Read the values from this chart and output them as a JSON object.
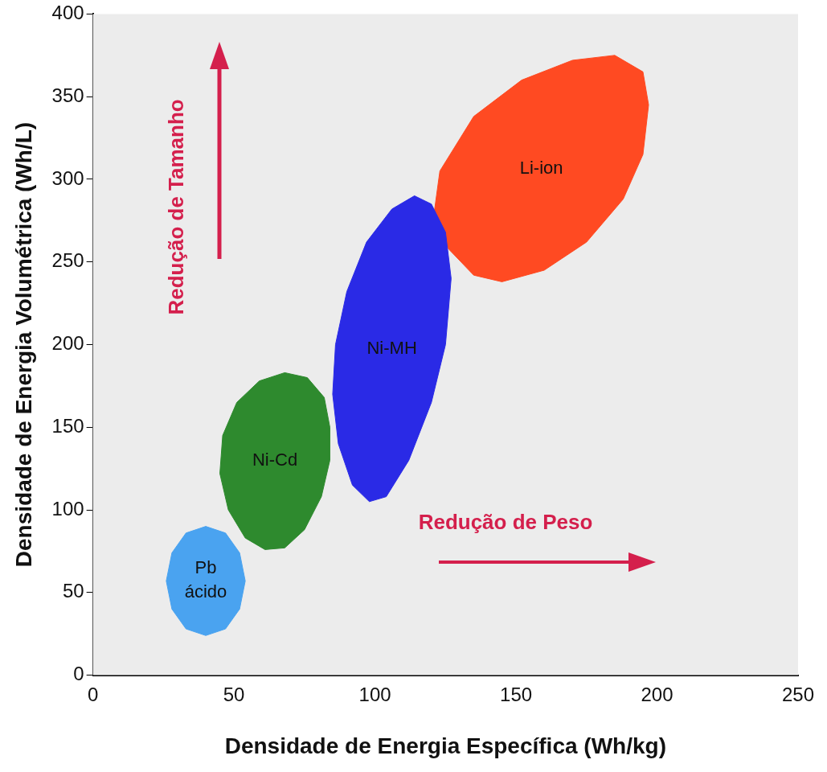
{
  "chart_data": {
    "type": "area",
    "xlabel": "Densidade de Energia Específica (Wh/kg)",
    "ylabel": "Densidade de Energia Volumétrica (Wh/L)",
    "xlim": [
      0,
      250
    ],
    "xticks": [
      0,
      50,
      100,
      150,
      200,
      250
    ],
    "ylim": [
      0,
      400
    ],
    "yticks": [
      0,
      50,
      100,
      150,
      200,
      250,
      300,
      350,
      400
    ],
    "grid": false,
    "legend": false,
    "annotations": [
      "Redução de Tamanho",
      "Redução de Peso"
    ],
    "series": [
      {
        "name": "Pb ácido",
        "color": "#4aa3f0",
        "x": [
          54,
          52,
          47,
          40,
          33,
          28,
          26,
          28,
          33,
          40,
          47,
          52,
          54
        ],
        "values": [
          57,
          74,
          86,
          90,
          86,
          74,
          57,
          40,
          28,
          24,
          28,
          40,
          57
        ]
      },
      {
        "name": "Ni-Cd",
        "color": "#2e8a2e",
        "x": [
          84,
          82,
          76,
          68,
          59,
          51,
          46,
          45,
          48,
          54,
          61,
          68,
          75,
          81,
          84,
          84
        ],
        "values": [
          150,
          168,
          180,
          183,
          178,
          165,
          145,
          122,
          100,
          83,
          76,
          77,
          88,
          108,
          130,
          150
        ]
      },
      {
        "name": "Ni-MH",
        "color": "#2a2ae6",
        "x": [
          127,
          125,
          120,
          114,
          106,
          97,
          90,
          86,
          85,
          87,
          92,
          98,
          104,
          112,
          120,
          125,
          127
        ],
        "values": [
          240,
          268,
          285,
          290,
          282,
          262,
          232,
          200,
          170,
          140,
          115,
          105,
          108,
          130,
          165,
          200,
          240
        ]
      },
      {
        "name": "Li-ion",
        "color": "#ff4a22",
        "x": [
          197,
          195,
          185,
          170,
          152,
          135,
          123,
          121,
          126,
          135,
          145,
          160,
          175,
          188,
          195,
          197
        ],
        "values": [
          345,
          365,
          375,
          372,
          360,
          338,
          305,
          280,
          258,
          242,
          238,
          245,
          262,
          288,
          315,
          345
        ]
      }
    ]
  }
}
